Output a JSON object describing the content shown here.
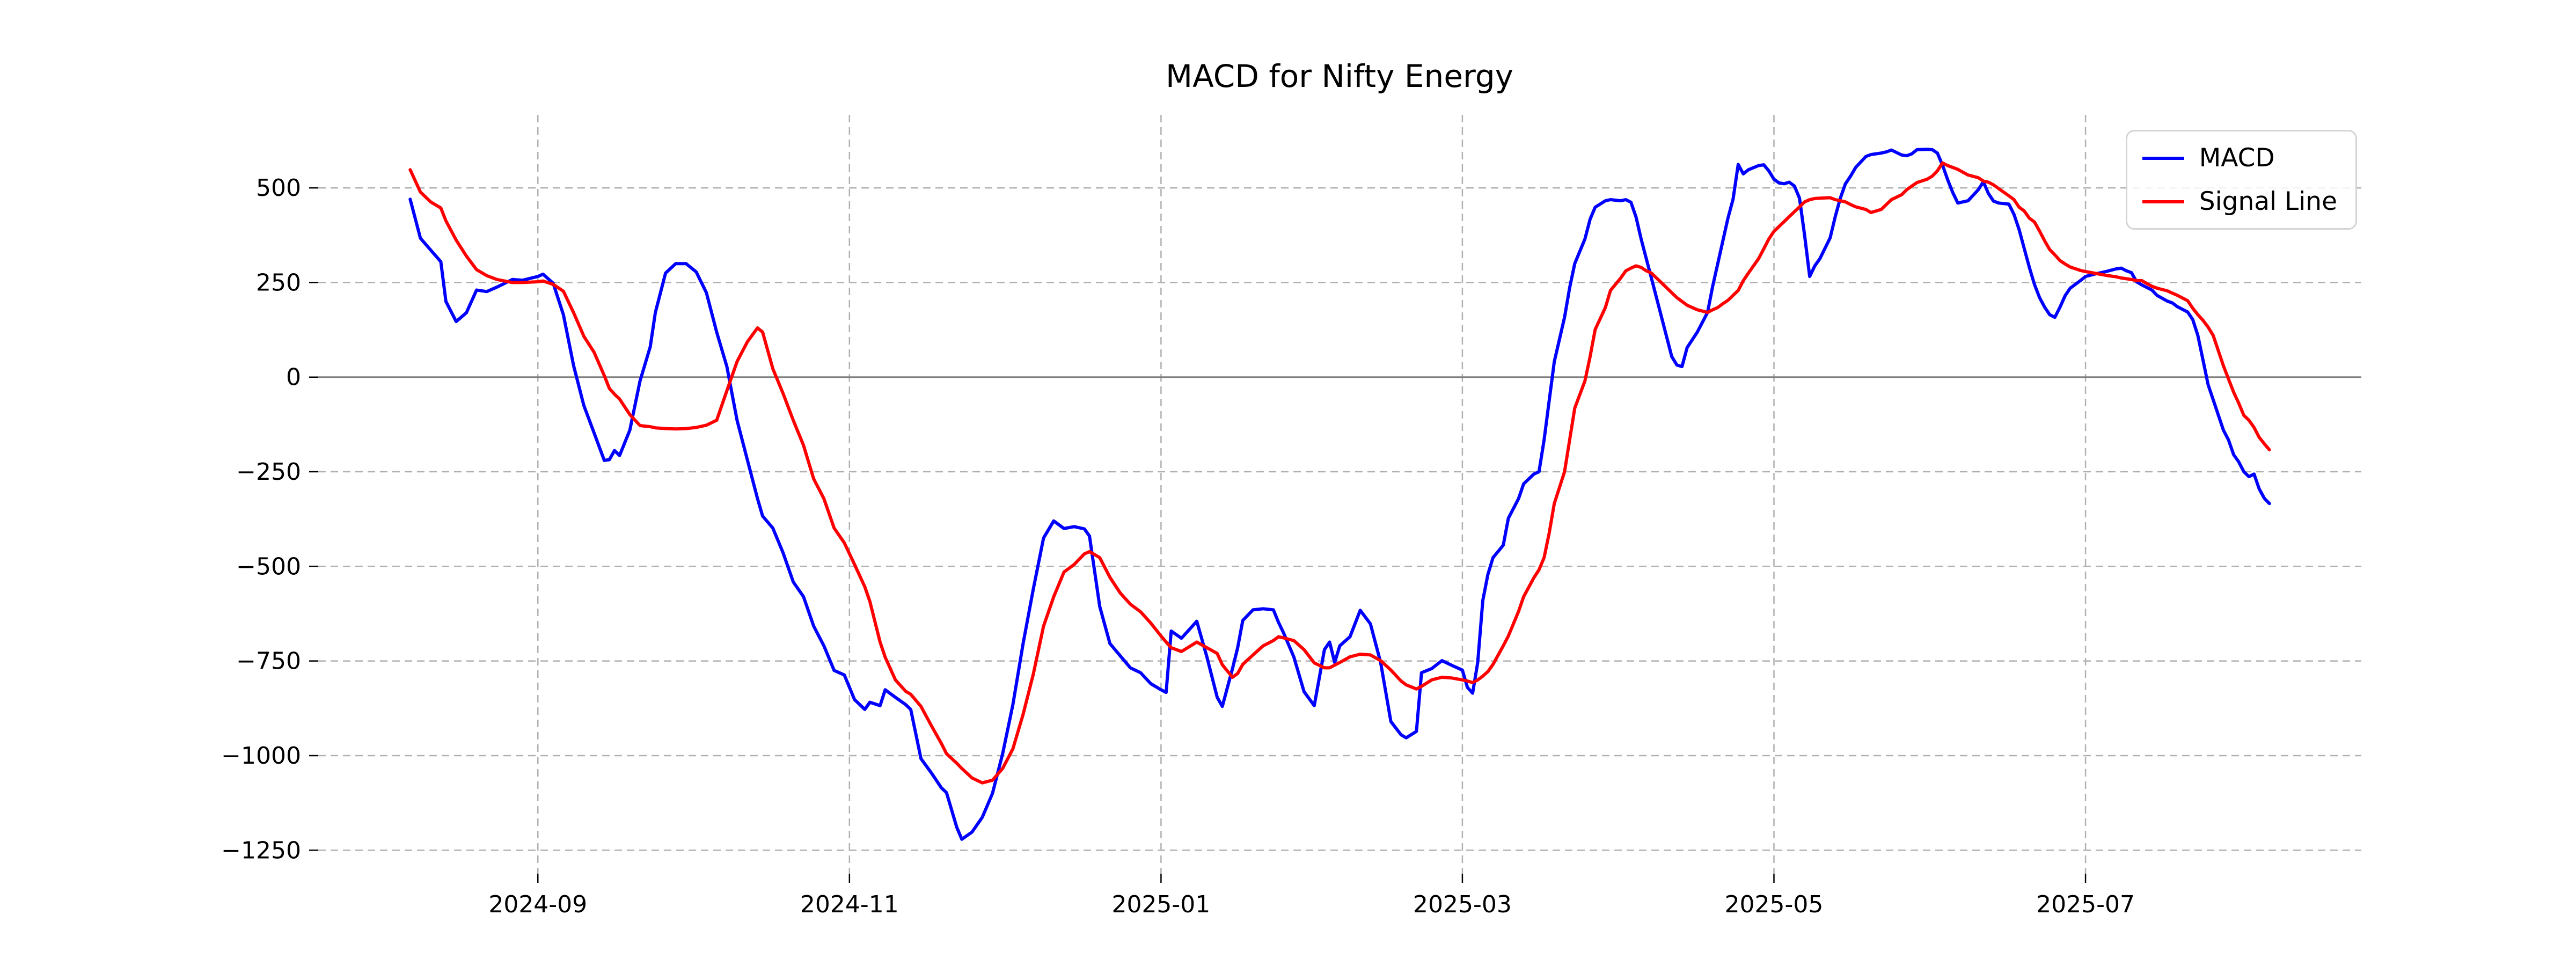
{
  "chart_data": {
    "type": "line",
    "title": "MACD for Nifty Energy",
    "xlabel": "",
    "ylabel": "",
    "grid": true,
    "legend_position": "top-right",
    "xlim": [
      "2024-07-20",
      "2025-08-24"
    ],
    "ylim": [
      -1312,
      693
    ],
    "xticks": [
      {
        "date": "2024-09-01",
        "label": "2024-09"
      },
      {
        "date": "2024-11-01",
        "label": "2024-11"
      },
      {
        "date": "2025-01-01",
        "label": "2025-01"
      },
      {
        "date": "2025-03-01",
        "label": "2025-03"
      },
      {
        "date": "2025-05-01",
        "label": "2025-05"
      },
      {
        "date": "2025-07-01",
        "label": "2025-07"
      }
    ],
    "yticks": [
      {
        "value": 500,
        "label": "500"
      },
      {
        "value": 250,
        "label": "250"
      },
      {
        "value": 0,
        "label": "0"
      },
      {
        "value": -250,
        "label": "−250"
      },
      {
        "value": -500,
        "label": "−500"
      },
      {
        "value": -750,
        "label": "−750"
      },
      {
        "value": -1000,
        "label": "−1000"
      },
      {
        "value": -1250,
        "label": "−1250"
      }
    ],
    "zero_line_value": 0,
    "colors": {
      "macd": "#0000ff",
      "signal": "#ff0000",
      "grid": "#b0b0b0",
      "zero_line": "#808080",
      "text": "#000000",
      "background": "#ffffff",
      "legend_border": "#d5d5d5"
    },
    "series": [
      {
        "name": "MACD",
        "color": "#0000ff"
      },
      {
        "name": "Signal Line",
        "color": "#ff0000"
      }
    ],
    "points_format": [
      "date",
      "MACD",
      "Signal Line"
    ],
    "points": [
      [
        "2024-08-07",
        470,
        548
      ],
      [
        "2024-08-09",
        367,
        489
      ],
      [
        "2024-08-11",
        336,
        463
      ],
      [
        "2024-08-13",
        305,
        447
      ],
      [
        "2024-08-14",
        200,
        413
      ],
      [
        "2024-08-16",
        147,
        362
      ],
      [
        "2024-08-18",
        170,
        320
      ],
      [
        "2024-08-20",
        230,
        284
      ],
      [
        "2024-08-22",
        226,
        268
      ],
      [
        "2024-08-24",
        238,
        258
      ],
      [
        "2024-08-27",
        258,
        250
      ],
      [
        "2024-08-29",
        256,
        250
      ],
      [
        "2024-09-01",
        266,
        252
      ],
      [
        "2024-09-02",
        272,
        254
      ],
      [
        "2024-09-04",
        248,
        245
      ],
      [
        "2024-09-06",
        165,
        227
      ],
      [
        "2024-09-08",
        30,
        170
      ],
      [
        "2024-09-10",
        -75,
        108
      ],
      [
        "2024-09-12",
        -147,
        66
      ],
      [
        "2024-09-14",
        -220,
        4
      ],
      [
        "2024-09-15",
        -218,
        -30
      ],
      [
        "2024-09-16",
        -194,
        -45
      ],
      [
        "2024-09-17",
        -207,
        -58
      ],
      [
        "2024-09-19",
        -140,
        -99
      ],
      [
        "2024-09-21",
        -10,
        -128
      ],
      [
        "2024-09-23",
        80,
        -131
      ],
      [
        "2024-09-24",
        171,
        -134
      ],
      [
        "2024-09-26",
        275,
        -136
      ],
      [
        "2024-09-28",
        300,
        -137
      ],
      [
        "2024-09-30",
        300,
        -136
      ],
      [
        "2024-10-02",
        278,
        -133
      ],
      [
        "2024-10-04",
        223,
        -127
      ],
      [
        "2024-10-06",
        119,
        -114
      ],
      [
        "2024-10-08",
        28,
        -36
      ],
      [
        "2024-10-10",
        -114,
        41
      ],
      [
        "2024-10-12",
        -218,
        93
      ],
      [
        "2024-10-14",
        -321,
        130
      ],
      [
        "2024-10-15",
        -367,
        119
      ],
      [
        "2024-10-17",
        -399,
        22
      ],
      [
        "2024-10-19",
        -464,
        -43
      ],
      [
        "2024-10-21",
        -541,
        -114
      ],
      [
        "2024-10-23",
        -580,
        -180
      ],
      [
        "2024-10-25",
        -658,
        -269
      ],
      [
        "2024-10-27",
        -710,
        -321
      ],
      [
        "2024-10-29",
        -775,
        -399
      ],
      [
        "2024-10-31",
        -787,
        -438
      ],
      [
        "2024-11-02",
        -852,
        -495
      ],
      [
        "2024-11-04",
        -878,
        -554
      ],
      [
        "2024-11-05",
        -859,
        -593
      ],
      [
        "2024-11-07",
        -868,
        -700
      ],
      [
        "2024-11-08",
        -826,
        -740
      ],
      [
        "2024-11-10",
        -846,
        -800
      ],
      [
        "2024-11-12",
        -865,
        -830
      ],
      [
        "2024-11-13",
        -878,
        -838
      ],
      [
        "2024-11-15",
        -1008,
        -870
      ],
      [
        "2024-11-17",
        -1045,
        -920
      ],
      [
        "2024-11-19",
        -1085,
        -968
      ],
      [
        "2024-11-20",
        -1098,
        -995
      ],
      [
        "2024-11-22",
        -1189,
        -1020
      ],
      [
        "2024-11-23",
        -1221,
        -1034
      ],
      [
        "2024-11-25",
        -1202,
        -1059
      ],
      [
        "2024-11-27",
        -1163,
        -1072
      ],
      [
        "2024-11-29",
        -1100,
        -1065
      ],
      [
        "2024-12-01",
        -995,
        -1034
      ],
      [
        "2024-12-03",
        -865,
        -982
      ],
      [
        "2024-12-05",
        -704,
        -891
      ],
      [
        "2024-12-07",
        -560,
        -785
      ],
      [
        "2024-12-09",
        -425,
        -658
      ],
      [
        "2024-12-11",
        -380,
        -580
      ],
      [
        "2024-12-13",
        -400,
        -515
      ],
      [
        "2024-12-15",
        -395,
        -495
      ],
      [
        "2024-12-17",
        -401,
        -467
      ],
      [
        "2024-12-18",
        -420,
        -461
      ],
      [
        "2024-12-20",
        -606,
        -477
      ],
      [
        "2024-12-22",
        -704,
        -529
      ],
      [
        "2024-12-24",
        -736,
        -570
      ],
      [
        "2024-12-26",
        -768,
        -600
      ],
      [
        "2024-12-28",
        -781,
        -620
      ],
      [
        "2024-12-30",
        -810,
        -650
      ],
      [
        "2025-01-01",
        -826,
        -684
      ],
      [
        "2025-01-02",
        -833,
        -700
      ],
      [
        "2025-01-03",
        -671,
        -715
      ],
      [
        "2025-01-05",
        -690,
        -725
      ],
      [
        "2025-01-08",
        -645,
        -700
      ],
      [
        "2025-01-10",
        -740,
        -715
      ],
      [
        "2025-01-12",
        -846,
        -730
      ],
      [
        "2025-01-13",
        -870,
        -760
      ],
      [
        "2025-01-15",
        -770,
        -793
      ],
      [
        "2025-01-16",
        -715,
        -783
      ],
      [
        "2025-01-17",
        -643,
        -759
      ],
      [
        "2025-01-19",
        -615,
        -734
      ],
      [
        "2025-01-21",
        -612,
        -710
      ],
      [
        "2025-01-23",
        -615,
        -696
      ],
      [
        "2025-01-24",
        -648,
        -686
      ],
      [
        "2025-01-25",
        -676,
        -689
      ],
      [
        "2025-01-27",
        -739,
        -696
      ],
      [
        "2025-01-29",
        -831,
        -720
      ],
      [
        "2025-01-31",
        -868,
        -755
      ],
      [
        "2025-02-02",
        -720,
        -768
      ],
      [
        "2025-02-03",
        -700,
        -768
      ],
      [
        "2025-02-04",
        -754,
        -761
      ],
      [
        "2025-02-05",
        -710,
        -754
      ],
      [
        "2025-02-07",
        -686,
        -739
      ],
      [
        "2025-02-09",
        -616,
        -732
      ],
      [
        "2025-02-11",
        -652,
        -734
      ],
      [
        "2025-02-13",
        -754,
        -749
      ],
      [
        "2025-02-15",
        -910,
        -774
      ],
      [
        "2025-02-17",
        -945,
        -803
      ],
      [
        "2025-02-18",
        -953,
        -813
      ],
      [
        "2025-02-20",
        -936,
        -824
      ],
      [
        "2025-02-21",
        -781,
        -817
      ],
      [
        "2025-02-23",
        -770,
        -800
      ],
      [
        "2025-02-25",
        -749,
        -793
      ],
      [
        "2025-02-27",
        -762,
        -795
      ],
      [
        "2025-03-01",
        -774,
        -800
      ],
      [
        "2025-03-02",
        -820,
        -803
      ],
      [
        "2025-03-03",
        -835,
        -807
      ],
      [
        "2025-03-04",
        -754,
        -800
      ],
      [
        "2025-03-05",
        -590,
        -790
      ],
      [
        "2025-03-06",
        -521,
        -778
      ],
      [
        "2025-03-07",
        -477,
        -759
      ],
      [
        "2025-03-09",
        -444,
        -710
      ],
      [
        "2025-03-10",
        -373,
        -684
      ],
      [
        "2025-03-12",
        -321,
        -619
      ],
      [
        "2025-03-13",
        -282,
        -580
      ],
      [
        "2025-03-15",
        -256,
        -530
      ],
      [
        "2025-03-16",
        -250,
        -509
      ],
      [
        "2025-03-17",
        -166,
        -477
      ],
      [
        "2025-03-18",
        -62,
        -412
      ],
      [
        "2025-03-19",
        41,
        -334
      ],
      [
        "2025-03-21",
        158,
        -250
      ],
      [
        "2025-03-22",
        236,
        -166
      ],
      [
        "2025-03-23",
        300,
        -82
      ],
      [
        "2025-03-25",
        365,
        -10
      ],
      [
        "2025-03-26",
        417,
        54
      ],
      [
        "2025-03-27",
        449,
        126
      ],
      [
        "2025-03-29",
        466,
        184
      ],
      [
        "2025-03-30",
        469,
        229
      ],
      [
        "2025-04-01",
        466,
        262
      ],
      [
        "2025-04-02",
        469,
        281
      ],
      [
        "2025-04-03",
        462,
        288
      ],
      [
        "2025-04-04",
        423,
        294
      ],
      [
        "2025-04-05",
        365,
        290
      ],
      [
        "2025-04-06",
        313,
        281
      ],
      [
        "2025-04-07",
        262,
        275
      ],
      [
        "2025-04-08",
        210,
        262
      ],
      [
        "2025-04-09",
        158,
        249
      ],
      [
        "2025-04-10",
        106,
        236
      ],
      [
        "2025-04-11",
        54,
        223
      ],
      [
        "2025-04-12",
        32,
        210
      ],
      [
        "2025-04-13",
        28,
        200
      ],
      [
        "2025-04-14",
        78,
        190
      ],
      [
        "2025-04-16",
        119,
        178
      ],
      [
        "2025-04-18",
        171,
        171
      ],
      [
        "2025-04-19",
        240,
        178
      ],
      [
        "2025-04-20",
        300,
        184
      ],
      [
        "2025-04-21",
        360,
        194
      ],
      [
        "2025-04-22",
        420,
        203
      ],
      [
        "2025-04-23",
        470,
        216
      ],
      [
        "2025-04-24",
        562,
        229
      ],
      [
        "2025-04-25",
        537,
        255
      ],
      [
        "2025-04-26",
        548,
        275
      ],
      [
        "2025-04-28",
        559,
        313
      ],
      [
        "2025-04-29",
        561,
        339
      ],
      [
        "2025-04-30",
        545,
        365
      ],
      [
        "2025-05-01",
        523,
        385
      ],
      [
        "2025-05-02",
        513,
        398
      ],
      [
        "2025-05-03",
        511,
        411
      ],
      [
        "2025-05-04",
        515,
        424
      ],
      [
        "2025-05-05",
        505,
        437
      ],
      [
        "2025-05-06",
        473,
        450
      ],
      [
        "2025-05-07",
        375,
        463
      ],
      [
        "2025-05-08",
        266,
        469
      ],
      [
        "2025-05-09",
        294,
        472
      ],
      [
        "2025-05-10",
        313,
        473
      ],
      [
        "2025-05-12",
        368,
        474
      ],
      [
        "2025-05-13",
        424,
        469
      ],
      [
        "2025-05-14",
        473,
        466
      ],
      [
        "2025-05-15",
        511,
        463
      ],
      [
        "2025-05-16",
        531,
        456
      ],
      [
        "2025-05-17",
        554,
        450
      ],
      [
        "2025-05-19",
        583,
        443
      ],
      [
        "2025-05-20",
        588,
        435
      ],
      [
        "2025-05-22",
        592,
        443
      ],
      [
        "2025-05-23",
        595,
        456
      ],
      [
        "2025-05-24",
        600,
        469
      ],
      [
        "2025-05-26",
        587,
        482
      ],
      [
        "2025-05-27",
        585,
        495
      ],
      [
        "2025-05-28",
        590,
        505
      ],
      [
        "2025-05-29",
        601,
        514
      ],
      [
        "2025-05-31",
        602,
        523
      ],
      [
        "2025-06-01",
        601,
        531
      ],
      [
        "2025-06-02",
        592,
        545
      ],
      [
        "2025-06-03",
        560,
        566
      ],
      [
        "2025-06-04",
        522,
        559
      ],
      [
        "2025-06-05",
        488,
        554
      ],
      [
        "2025-06-06",
        460,
        549
      ],
      [
        "2025-06-08",
        466,
        534
      ],
      [
        "2025-06-10",
        495,
        527
      ],
      [
        "2025-06-11",
        516,
        518
      ],
      [
        "2025-06-12",
        485,
        515
      ],
      [
        "2025-06-13",
        465,
        508
      ],
      [
        "2025-06-14",
        460,
        498
      ],
      [
        "2025-06-16",
        457,
        479
      ],
      [
        "2025-06-17",
        430,
        469
      ],
      [
        "2025-06-18",
        390,
        449
      ],
      [
        "2025-06-19",
        340,
        439
      ],
      [
        "2025-06-20",
        290,
        420
      ],
      [
        "2025-06-21",
        245,
        410
      ],
      [
        "2025-06-22",
        210,
        386
      ],
      [
        "2025-06-23",
        185,
        360
      ],
      [
        "2025-06-24",
        165,
        337
      ],
      [
        "2025-06-25",
        158,
        323
      ],
      [
        "2025-06-26",
        185,
        308
      ],
      [
        "2025-06-27",
        215,
        299
      ],
      [
        "2025-06-28",
        235,
        291
      ],
      [
        "2025-06-30",
        255,
        282
      ],
      [
        "2025-07-01",
        266,
        279
      ],
      [
        "2025-07-03",
        273,
        274
      ],
      [
        "2025-07-05",
        279,
        269
      ],
      [
        "2025-07-07",
        286,
        265
      ],
      [
        "2025-07-08",
        288,
        262
      ],
      [
        "2025-07-09",
        281,
        260
      ],
      [
        "2025-07-10",
        276,
        258
      ],
      [
        "2025-07-11",
        252,
        255
      ],
      [
        "2025-07-12",
        244,
        255
      ],
      [
        "2025-07-14",
        230,
        240
      ],
      [
        "2025-07-15",
        216,
        235
      ],
      [
        "2025-07-17",
        201,
        228
      ],
      [
        "2025-07-18",
        196,
        222
      ],
      [
        "2025-07-19",
        186,
        216
      ],
      [
        "2025-07-21",
        172,
        202
      ],
      [
        "2025-07-22",
        152,
        182
      ],
      [
        "2025-07-23",
        110,
        165
      ],
      [
        "2025-07-24",
        45,
        150
      ],
      [
        "2025-07-25",
        -20,
        132
      ],
      [
        "2025-07-26",
        -60,
        110
      ],
      [
        "2025-07-27",
        -100,
        70
      ],
      [
        "2025-07-28",
        -140,
        30
      ],
      [
        "2025-07-29",
        -166,
        -5
      ],
      [
        "2025-07-30",
        -205,
        -40
      ],
      [
        "2025-07-31",
        -224,
        -69
      ],
      [
        "2025-08-01",
        -250,
        -101
      ],
      [
        "2025-08-02",
        -263,
        -114
      ],
      [
        "2025-08-03",
        -256,
        -133
      ],
      [
        "2025-08-04",
        -295,
        -159
      ],
      [
        "2025-08-05",
        -320,
        -176
      ],
      [
        "2025-08-06",
        -334,
        -192
      ]
    ]
  }
}
